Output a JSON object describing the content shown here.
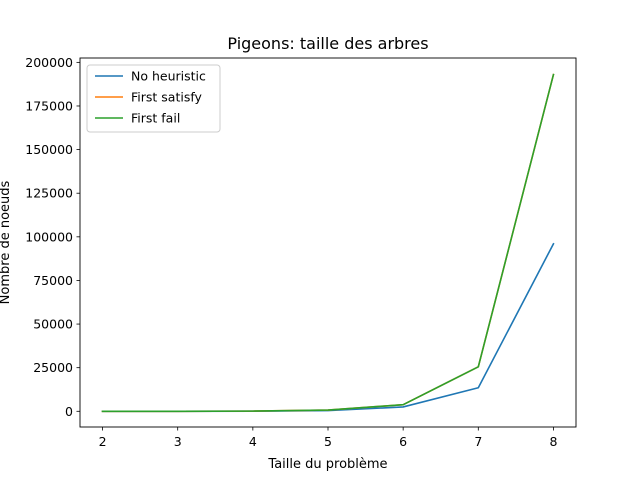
{
  "chart_data": {
    "type": "line",
    "title": "Pigeons: taille des arbres",
    "xlabel": "Taille du problème",
    "ylabel": "Nombre de noeuds",
    "x": [
      2,
      3,
      4,
      5,
      6,
      7,
      8
    ],
    "xlim": [
      1.7,
      8.3
    ],
    "ylim": [
      -9000,
      202500
    ],
    "xticks": [
      2,
      3,
      4,
      5,
      6,
      7,
      8
    ],
    "yticks": [
      0,
      25000,
      50000,
      75000,
      100000,
      125000,
      150000,
      175000,
      200000
    ],
    "grid": false,
    "legend_position": "top-left",
    "series": [
      {
        "name": "No heuristic",
        "color": "#1f77b4",
        "values": [
          1,
          10,
          60,
          400,
          2500,
          13500,
          96000
        ]
      },
      {
        "name": "First satisfy",
        "color": "#ff7f0e",
        "values": [
          1,
          15,
          100,
          700,
          3800,
          25500,
          193000
        ]
      },
      {
        "name": "First fail",
        "color": "#2ca02c",
        "values": [
          1,
          15,
          100,
          700,
          3800,
          25500,
          193000
        ]
      }
    ]
  }
}
